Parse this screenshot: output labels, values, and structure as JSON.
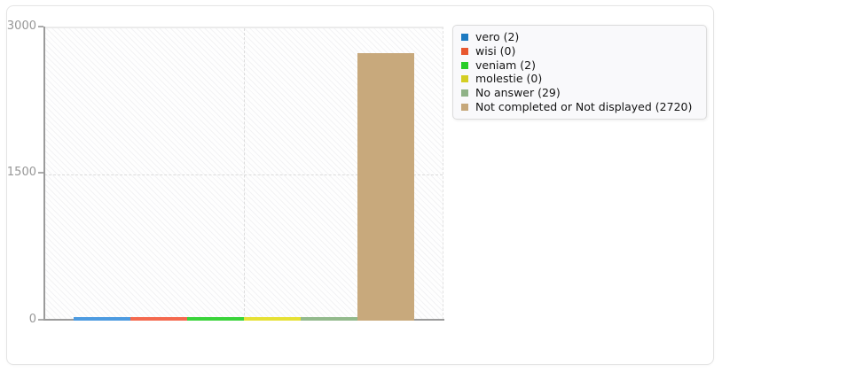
{
  "page": {
    "background": "#ffffff"
  },
  "chart_card": {
    "background": "#ffffff",
    "border_color": "#e4e4e4"
  },
  "chart_data": {
    "type": "bar",
    "title": "",
    "xlabel": "",
    "ylabel": "",
    "categories": [
      "vero",
      "wisi",
      "veniam",
      "molestie",
      "No answer",
      "Not completed or Not displayed"
    ],
    "values": [
      2,
      0,
      2,
      0,
      29,
      2720
    ],
    "bar_colors": [
      "#4d9be0",
      "#f4694e",
      "#3ad43a",
      "#e6e135",
      "#93ba8c",
      "#c8a97c"
    ],
    "ylim": [
      0,
      3000
    ],
    "yticks": [
      0,
      1500,
      3000
    ],
    "ytick_labels_top_to_bottom": [
      "3000",
      "1500",
      "0"
    ],
    "grid": {
      "horizontal_dashed_at": 1500,
      "vertical_dashed_at_plot_center": true,
      "solid_line_at_top": 3000,
      "hatch_background": true
    },
    "legend_position": "top-right outside plot",
    "axis_color": "#9b9b9b"
  },
  "y_axis": {
    "labels": {
      "top": "3000",
      "mid": "1500",
      "bottom": "0"
    }
  },
  "legend": {
    "items": [
      {
        "label": "vero (2)",
        "color": "#1d7ac1"
      },
      {
        "label": "wisi (0)",
        "color": "#e8572f"
      },
      {
        "label": "veniam (2)",
        "color": "#28cd28"
      },
      {
        "label": "molestie (0)",
        "color": "#d4ce23"
      },
      {
        "label": "No answer (29)",
        "color": "#8fb287"
      },
      {
        "label": "Not completed or Not displayed (2720)",
        "color": "#c6a87b"
      }
    ]
  }
}
